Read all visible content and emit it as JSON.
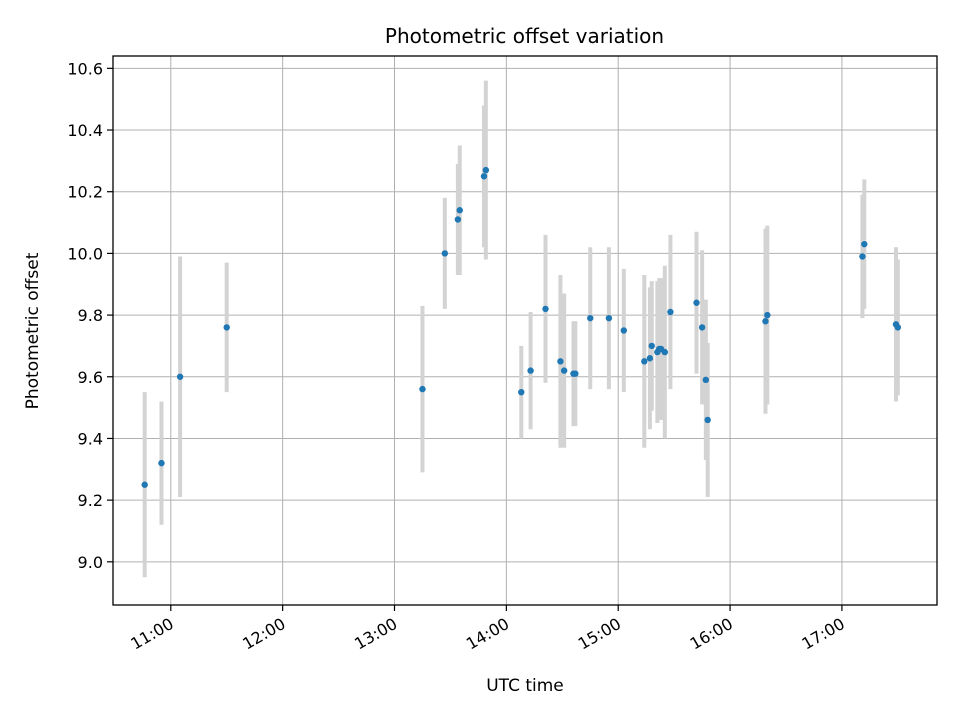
{
  "chart_data": {
    "type": "scatter",
    "title": "Photometric offset variation",
    "xlabel": "UTC time",
    "ylabel": "Photometric offset",
    "x_tick_labels": [
      "11:00",
      "12:00",
      "13:00",
      "14:00",
      "15:00",
      "16:00",
      "17:00"
    ],
    "y_tick_labels": [
      "9.0",
      "9.2",
      "9.4",
      "9.6",
      "9.8",
      "10.0",
      "10.2",
      "10.4",
      "10.6"
    ],
    "xlim": [
      "10:29",
      "17:51"
    ],
    "ylim": [
      8.86,
      10.64
    ],
    "grid": true,
    "marker_color": "#1f77b4",
    "errorbar_color": "#d3d3d3",
    "points": [
      {
        "x": "10:46",
        "y": 9.25,
        "yerr": 0.3
      },
      {
        "x": "10:55",
        "y": 9.32,
        "yerr": 0.2
      },
      {
        "x": "11:05",
        "y": 9.6,
        "yerr": 0.39
      },
      {
        "x": "11:30",
        "y": 9.76,
        "yerr": 0.21
      },
      {
        "x": "13:15",
        "y": 9.56,
        "yerr": 0.27
      },
      {
        "x": "13:27",
        "y": 10.0,
        "yerr": 0.18
      },
      {
        "x": "13:34",
        "y": 10.11,
        "yerr": 0.18
      },
      {
        "x": "13:35",
        "y": 10.14,
        "yerr": 0.21
      },
      {
        "x": "13:48",
        "y": 10.25,
        "yerr": 0.23
      },
      {
        "x": "13:49",
        "y": 10.27,
        "yerr": 0.29
      },
      {
        "x": "14:08",
        "y": 9.55,
        "yerr": 0.15
      },
      {
        "x": "14:13",
        "y": 9.62,
        "yerr": 0.19
      },
      {
        "x": "14:21",
        "y": 9.82,
        "yerr": 0.24
      },
      {
        "x": "14:29",
        "y": 9.65,
        "yerr": 0.28
      },
      {
        "x": "14:31",
        "y": 9.62,
        "yerr": 0.25
      },
      {
        "x": "14:36",
        "y": 9.61,
        "yerr": 0.17
      },
      {
        "x": "14:37",
        "y": 9.61,
        "yerr": 0.17
      },
      {
        "x": "14:45",
        "y": 9.79,
        "yerr": 0.23
      },
      {
        "x": "14:55",
        "y": 9.79,
        "yerr": 0.23
      },
      {
        "x": "15:03",
        "y": 9.75,
        "yerr": 0.2
      },
      {
        "x": "15:14",
        "y": 9.65,
        "yerr": 0.28
      },
      {
        "x": "15:17",
        "y": 9.66,
        "yerr": 0.23
      },
      {
        "x": "15:18",
        "y": 9.7,
        "yerr": 0.21
      },
      {
        "x": "15:21",
        "y": 9.68,
        "yerr": 0.23
      },
      {
        "x": "15:22",
        "y": 9.69,
        "yerr": 0.23
      },
      {
        "x": "15:23",
        "y": 9.69,
        "yerr": 0.23
      },
      {
        "x": "15:25",
        "y": 9.68,
        "yerr": 0.28
      },
      {
        "x": "15:28",
        "y": 9.81,
        "yerr": 0.25
      },
      {
        "x": "15:42",
        "y": 9.84,
        "yerr": 0.23
      },
      {
        "x": "15:45",
        "y": 9.76,
        "yerr": 0.25
      },
      {
        "x": "15:47",
        "y": 9.59,
        "yerr": 0.26
      },
      {
        "x": "15:48",
        "y": 9.46,
        "yerr": 0.25
      },
      {
        "x": "16:19",
        "y": 9.78,
        "yerr": 0.3
      },
      {
        "x": "16:20",
        "y": 9.8,
        "yerr": 0.29
      },
      {
        "x": "17:11",
        "y": 9.99,
        "yerr": 0.2
      },
      {
        "x": "17:12",
        "y": 10.03,
        "yerr": 0.21
      },
      {
        "x": "17:29",
        "y": 9.77,
        "yerr": 0.25
      },
      {
        "x": "17:30",
        "y": 9.76,
        "yerr": 0.22
      }
    ]
  }
}
